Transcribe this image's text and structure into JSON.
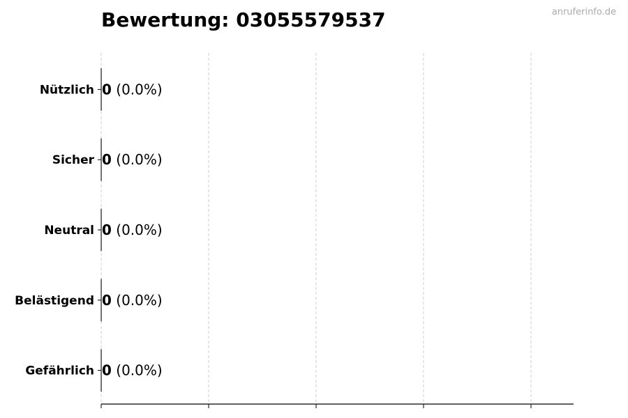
{
  "chart_data": {
    "type": "bar",
    "orientation": "horizontal",
    "title": "Bewertung: 03055579537",
    "categories": [
      "Nützlich",
      "Sicher",
      "Neutral",
      "Belästigend",
      "Gefährlich"
    ],
    "values": [
      0,
      0,
      0,
      0,
      0
    ],
    "value_labels": [
      "0",
      "0",
      "0",
      "0",
      "0"
    ],
    "percent_labels": [
      "(0.0%)",
      "(0.0%)",
      "(0.0%)",
      "(0.0%)",
      "(0.0%)"
    ],
    "xlabel": "",
    "ylabel": "",
    "x_tick_labels_shown": false,
    "grid": "x, dashed",
    "legend": "none",
    "colors": {
      "text": "#000000",
      "grid": "#cccccc",
      "watermark": "#aaaaaa"
    }
  },
  "watermark": "anruferinfo.de"
}
